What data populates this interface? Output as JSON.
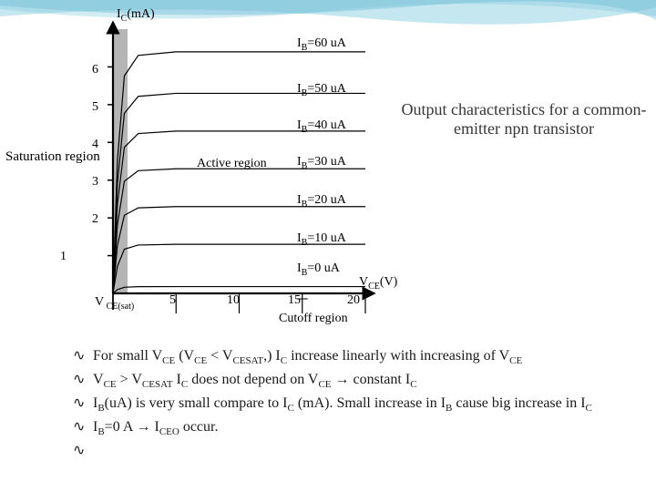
{
  "decoration": {
    "wave_colors": [
      "#a3d9e8",
      "#7fc9de",
      "#5bb5d0"
    ],
    "wave_opacity": 0.5
  },
  "chart": {
    "type": "line",
    "title": "I_C(mA)",
    "xlabel": "V_CE(V)",
    "ylabel_axis": "I_C(mA)",
    "xlim": [
      0,
      20
    ],
    "ylim": [
      0,
      7
    ],
    "xticks": [
      5,
      10,
      15,
      20
    ],
    "yticks": [
      1,
      2,
      3,
      4,
      5,
      6
    ],
    "origin_label": "V_CE(sat)",
    "cutoff_label": "Cutoff region",
    "active_label": "Active region",
    "saturation_label": "Saturation\nregion",
    "saturation_band_color": "#b5b5b5",
    "line_color": "#000000",
    "axis_color": "#000000",
    "grid_color": "#000000",
    "background_color": "#ffffff",
    "line_width": 1.2,
    "curves": [
      {
        "ib_label": "I_B=60 uA",
        "plateau": 6.4
      },
      {
        "ib_label": "I_B=50 uA",
        "plateau": 5.3
      },
      {
        "ib_label": "I_B=40 uA",
        "plateau": 4.3
      },
      {
        "ib_label": "I_B=30 uA",
        "plateau": 3.3
      },
      {
        "ib_label": "I_B=20 uA",
        "plateau": 2.3
      },
      {
        "ib_label": "I_B=10 uA",
        "plateau": 1.3
      },
      {
        "ib_label": "I_B=0 uA",
        "plateau": 0.18
      }
    ]
  },
  "caption": "Output characteristics for a common-emitter npn transistor",
  "bullets": {
    "b1": "For small V_CE (V_CE < V_CESAT,) I_C increase linearly with increasing of V_CE",
    "b2": "V_CE > V_CESAT I_C does not depend on V_CE → constant I_C",
    "b3": "I_B(uA) is very small compare to I_C (mA). Small increase in I_B cause big increase in I_C",
    "b4": "I_B=0 A → I_CEO occur."
  }
}
